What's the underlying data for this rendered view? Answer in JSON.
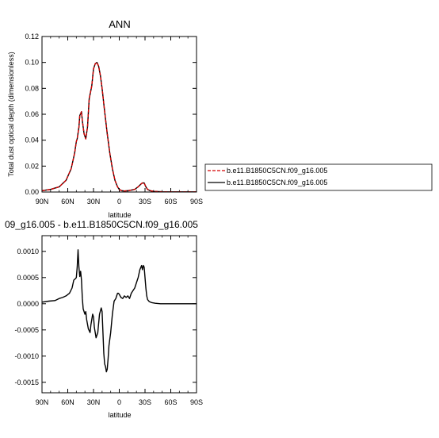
{
  "chart_data": [
    {
      "type": "line",
      "title": "ANN",
      "xlabel": "latitude",
      "ylabel": "Total dust optical depth (dimensionless)",
      "x_is_latitude_degrees_north_positive": true,
      "xlim": [
        90,
        -90
      ],
      "ylim": [
        0,
        0.12
      ],
      "xticks": [
        {
          "value": 90,
          "label": "90N"
        },
        {
          "value": 60,
          "label": "60N"
        },
        {
          "value": 30,
          "label": "30N"
        },
        {
          "value": 0,
          "label": "0"
        },
        {
          "value": -30,
          "label": "30S"
        },
        {
          "value": -60,
          "label": "60S"
        },
        {
          "value": -90,
          "label": "90S"
        }
      ],
      "yticks": [
        {
          "value": 0.0,
          "label": "0.00"
        },
        {
          "value": 0.02,
          "label": "0.02"
        },
        {
          "value": 0.04,
          "label": "0.04"
        },
        {
          "value": 0.06,
          "label": "0.06"
        },
        {
          "value": 0.08,
          "label": "0.08"
        },
        {
          "value": 0.1,
          "label": "0.10"
        },
        {
          "value": 0.12,
          "label": "0.12"
        }
      ],
      "legend_placement": "right",
      "series": [
        {
          "name": "b.e11.B1850C5CN.f09_g16.005",
          "color": "#d40000",
          "dash": "dashed",
          "x": [
            90,
            80,
            70,
            62,
            56,
            52,
            50,
            49,
            47,
            46,
            44,
            43,
            41,
            39,
            37,
            35,
            32,
            30,
            28,
            26,
            24,
            22,
            20,
            17,
            14,
            11,
            8,
            5,
            2,
            0,
            -3,
            -6,
            -10,
            -14,
            -18,
            -22,
            -25,
            -27,
            -29,
            -31,
            -33,
            -36,
            -40,
            -50,
            -60,
            -70,
            -80,
            -90
          ],
          "y": [
            0.001,
            0.002,
            0.004,
            0.009,
            0.018,
            0.03,
            0.039,
            0.041,
            0.05,
            0.059,
            0.062,
            0.055,
            0.045,
            0.041,
            0.05,
            0.072,
            0.082,
            0.095,
            0.099,
            0.1,
            0.097,
            0.09,
            0.08,
            0.062,
            0.045,
            0.03,
            0.018,
            0.009,
            0.004,
            0.002,
            0.001,
            0.0008,
            0.001,
            0.0015,
            0.002,
            0.004,
            0.006,
            0.007,
            0.007,
            0.004,
            0.002,
            0.001,
            0.0005,
            0.0002,
            0.0001,
            0.0001,
            0.0001,
            0.0001
          ]
        },
        {
          "name": "b.e11.B1850C5CN.f09_g16.005",
          "color": "#000000",
          "dash": "solid",
          "x": [
            90,
            80,
            70,
            62,
            56,
            52,
            50,
            49,
            47,
            46,
            44,
            43,
            41,
            39,
            37,
            35,
            32,
            30,
            28,
            26,
            24,
            22,
            20,
            17,
            14,
            11,
            8,
            5,
            2,
            0,
            -3,
            -6,
            -10,
            -14,
            -18,
            -22,
            -25,
            -27,
            -29,
            -31,
            -33,
            -36,
            -40,
            -50,
            -60,
            -70,
            -80,
            -90
          ],
          "y": [
            0.001,
            0.002,
            0.004,
            0.009,
            0.018,
            0.03,
            0.039,
            0.041,
            0.05,
            0.059,
            0.062,
            0.055,
            0.045,
            0.041,
            0.05,
            0.072,
            0.082,
            0.095,
            0.099,
            0.1,
            0.097,
            0.09,
            0.08,
            0.062,
            0.045,
            0.03,
            0.018,
            0.009,
            0.004,
            0.002,
            0.001,
            0.0008,
            0.001,
            0.0015,
            0.002,
            0.004,
            0.006,
            0.007,
            0.007,
            0.004,
            0.002,
            0.001,
            0.0005,
            0.0002,
            0.0001,
            0.0001,
            0.0001,
            0.0001
          ]
        }
      ]
    },
    {
      "type": "line",
      "title": "09_g16.005 - b.e11.B1850C5CN.f09_g16.005",
      "xlabel": "latitude",
      "ylabel": "",
      "x_is_latitude_degrees_north_positive": true,
      "xlim": [
        90,
        -90
      ],
      "ylim": [
        -0.0017,
        0.0013
      ],
      "xticks": [
        {
          "value": 90,
          "label": "90N"
        },
        {
          "value": 60,
          "label": "60N"
        },
        {
          "value": 30,
          "label": "30N"
        },
        {
          "value": 0,
          "label": "0"
        },
        {
          "value": -30,
          "label": "30S"
        },
        {
          "value": -60,
          "label": "60S"
        },
        {
          "value": -90,
          "label": "90S"
        }
      ],
      "yticks": [
        {
          "value": 0.001,
          "label": "0.0010"
        },
        {
          "value": 0.0005,
          "label": "0.0005"
        },
        {
          "value": 0.0,
          "label": "0.0000"
        },
        {
          "value": -0.0005,
          "label": "-0.0005"
        },
        {
          "value": -0.001,
          "label": "-0.0010"
        },
        {
          "value": -0.0015,
          "label": "-0.0015"
        }
      ],
      "series": [
        {
          "color": "#000000",
          "dash": "solid",
          "x": [
            90,
            82,
            75,
            70,
            66,
            62,
            58,
            55,
            53,
            51,
            50,
            49,
            48,
            47,
            46,
            45,
            44,
            43,
            42,
            40,
            39,
            38,
            36,
            34,
            33,
            31,
            30,
            29,
            27,
            25,
            23,
            21,
            20,
            19,
            18,
            17,
            16,
            15,
            14,
            13,
            12,
            10,
            8,
            6,
            4,
            3,
            2,
            1,
            0,
            -2,
            -4,
            -6,
            -8,
            -10,
            -12,
            -14,
            -16,
            -18,
            -20,
            -22,
            -24,
            -26,
            -27,
            -28,
            -29,
            -30,
            -31,
            -32,
            -33,
            -35,
            -38,
            -42,
            -48,
            -55,
            -65,
            -75,
            -85,
            -90
          ],
          "y": [
            3e-05,
            5e-05,
            6e-05,
            0.0001,
            0.00012,
            0.00015,
            0.0002,
            0.0003,
            0.00045,
            0.00048,
            0.0005,
            0.0007,
            0.00103,
            0.0007,
            0.00052,
            0.00062,
            0.00045,
            0.0001,
            -0.0001,
            -0.0002,
            -0.00015,
            -0.0003,
            -0.00048,
            -0.00055,
            -0.0004,
            -0.0002,
            -0.00025,
            -0.00045,
            -0.00065,
            -0.00055,
            -0.0002,
            -8e-05,
            -0.00015,
            -0.00055,
            -0.00095,
            -0.00115,
            -0.0012,
            -0.0013,
            -0.00125,
            -0.00105,
            -0.0008,
            -0.00055,
            -0.0002,
            5e-05,
            0.0001,
            0.00015,
            0.0002,
            0.0002,
            0.00018,
            0.00012,
            0.0001,
            0.00015,
            0.00012,
            0.00015,
            0.0001,
            0.0002,
            0.00025,
            0.0003,
            0.0004,
            0.0005,
            0.00065,
            0.00073,
            0.00065,
            0.00073,
            0.0007,
            0.0005,
            0.0003,
            0.00015,
            8e-05,
            4e-05,
            2e-05,
            1e-05,
            0.0,
            0.0,
            0.0,
            0.0,
            0.0,
            0.0
          ]
        }
      ]
    }
  ]
}
